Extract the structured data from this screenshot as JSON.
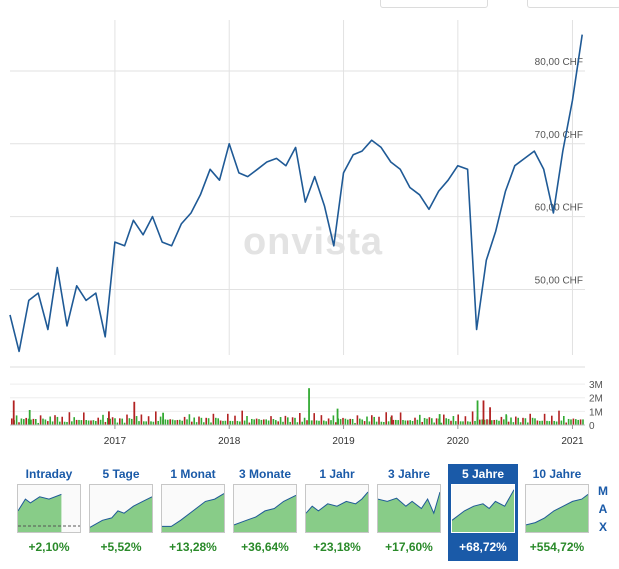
{
  "watermark": "onvista",
  "colors": {
    "line": "#1f5a96",
    "up": "#33aa33",
    "down": "#b22222",
    "accent": "#1a5aa8",
    "positive": "#2a8a2a",
    "thumb_fill": "#88cc88"
  },
  "chart_data": [
    {
      "type": "line",
      "series": [
        {
          "values": [
            [
              "2016-02-01",
              46.5
            ],
            [
              "2016-03-01",
              41.5
            ],
            [
              "2016-04-01",
              48.5
            ],
            [
              "2016-05-01",
              49.5
            ],
            [
              "2016-06-01",
              44.5
            ],
            [
              "2016-07-01",
              53.0
            ],
            [
              "2016-08-01",
              45.0
            ],
            [
              "2016-09-01",
              50.5
            ],
            [
              "2016-10-01",
              48.5
            ],
            [
              "2016-11-01",
              49.5
            ],
            [
              "2016-12-01",
              43.5
            ],
            [
              "2017-01-01",
              56.5
            ],
            [
              "2017-02-01",
              56.0
            ],
            [
              "2017-03-01",
              59.5
            ],
            [
              "2017-04-01",
              57.5
            ],
            [
              "2017-05-01",
              60.0
            ],
            [
              "2017-06-01",
              56.5
            ],
            [
              "2017-07-01",
              56.0
            ],
            [
              "2017-08-01",
              59.0
            ],
            [
              "2017-09-01",
              60.5
            ],
            [
              "2017-10-01",
              63.0
            ],
            [
              "2017-11-01",
              66.5
            ],
            [
              "2017-12-01",
              65.0
            ],
            [
              "2018-01-01",
              70.0
            ],
            [
              "2018-02-01",
              66.0
            ],
            [
              "2018-03-01",
              65.5
            ],
            [
              "2018-04-01",
              66.5
            ],
            [
              "2018-05-01",
              67.5
            ],
            [
              "2018-06-01",
              68.0
            ],
            [
              "2018-07-01",
              67.0
            ],
            [
              "2018-08-01",
              69.5
            ],
            [
              "2018-09-01",
              62.0
            ],
            [
              "2018-10-01",
              65.5
            ],
            [
              "2018-11-01",
              61.5
            ],
            [
              "2018-12-01",
              56.0
            ],
            [
              "2019-01-01",
              66.0
            ],
            [
              "2019-02-01",
              68.5
            ],
            [
              "2019-03-01",
              69.0
            ],
            [
              "2019-04-01",
              70.5
            ],
            [
              "2019-05-01",
              69.5
            ],
            [
              "2019-06-01",
              67.5
            ],
            [
              "2019-07-01",
              66.5
            ],
            [
              "2019-08-01",
              64.0
            ],
            [
              "2019-09-01",
              63.0
            ],
            [
              "2019-10-01",
              61.0
            ],
            [
              "2019-11-01",
              63.5
            ],
            [
              "2019-12-01",
              65.0
            ],
            [
              "2020-01-01",
              67.0
            ],
            [
              "2020-02-01",
              66.5
            ],
            [
              "2020-03-01",
              44.5
            ],
            [
              "2020-04-01",
              54.0
            ],
            [
              "2020-05-01",
              58.0
            ],
            [
              "2020-06-01",
              63.5
            ],
            [
              "2020-07-01",
              67.0
            ],
            [
              "2020-08-01",
              68.0
            ],
            [
              "2020-09-01",
              69.0
            ],
            [
              "2020-10-01",
              66.5
            ],
            [
              "2020-11-01",
              60.5
            ],
            [
              "2020-12-01",
              69.0
            ],
            [
              "2021-01-01",
              76.0
            ],
            [
              "2021-02-01",
              85.0
            ]
          ]
        }
      ],
      "x_axis": {
        "ticks": [
          "2017",
          "2018",
          "2019",
          "2020",
          "2021"
        ],
        "range": [
          "2016-02-01",
          "2021-02-10"
        ]
      },
      "y_axis": {
        "ticks": [
          "50,00 CHF",
          "60,00 CHF",
          "70,00 CHF",
          "80,00 CHF"
        ],
        "tick_values": [
          50,
          60,
          70,
          80
        ],
        "range": [
          41,
          87
        ]
      },
      "grid": true
    },
    {
      "type": "bar",
      "x_axis": {
        "ticks": [
          "2017",
          "2018",
          "2019",
          "2020",
          "2021"
        ]
      },
      "y_axis": {
        "ticks": [
          "3M",
          "2M",
          "1M",
          "0"
        ],
        "tick_values": [
          3,
          2,
          1,
          0
        ],
        "range": [
          0,
          3.3
        ],
        "unit": "M"
      },
      "pattern": [
        0.8,
        0.4,
        0.6,
        0.3,
        0.5,
        0.35,
        0.7,
        0.45,
        0.3,
        0.55,
        0.4,
        0.25
      ],
      "spikes": [
        {
          "x": "2016-02-10",
          "value": 1.8,
          "dir": "down"
        },
        {
          "x": "2016-04-01",
          "value": 1.1,
          "dir": "up"
        },
        {
          "x": "2016-12-10",
          "value": 1.0,
          "dir": "down"
        },
        {
          "x": "2017-03-01",
          "value": 1.7,
          "dir": "down"
        },
        {
          "x": "2017-06-01",
          "value": 0.9,
          "dir": "up"
        },
        {
          "x": "2018-09-10",
          "value": 2.7,
          "dir": "up"
        },
        {
          "x": "2018-12-10",
          "value": 1.2,
          "dir": "up"
        },
        {
          "x": "2019-06-01",
          "value": 0.7,
          "dir": "down"
        },
        {
          "x": "2019-11-01",
          "value": 0.8,
          "dir": "up"
        },
        {
          "x": "2020-03-01",
          "value": 1.8,
          "dir": "up"
        },
        {
          "x": "2020-03-20",
          "value": 1.8,
          "dir": "down"
        },
        {
          "x": "2020-04-10",
          "value": 1.3,
          "dir": "down"
        },
        {
          "x": "2020-06-01",
          "value": 0.7,
          "dir": "up"
        }
      ]
    }
  ],
  "tabs": [
    {
      "label": "Intraday",
      "change": "+2,10%",
      "active": false
    },
    {
      "label": "5 Tage",
      "change": "+5,52%",
      "active": false
    },
    {
      "label": "1 Monat",
      "change": "+13,28%",
      "active": false
    },
    {
      "label": "3 Monate",
      "change": "+36,64%",
      "active": false
    },
    {
      "label": "1 Jahr",
      "change": "+23,18%",
      "active": false
    },
    {
      "label": "3 Jahre",
      "change": "+17,60%",
      "active": false
    },
    {
      "label": "5 Jahre",
      "change": "+68,72%",
      "active": true
    },
    {
      "label": "10 Jahre",
      "change": "+554,72%",
      "active": false
    }
  ],
  "max_label": [
    "M",
    "A",
    "X"
  ]
}
